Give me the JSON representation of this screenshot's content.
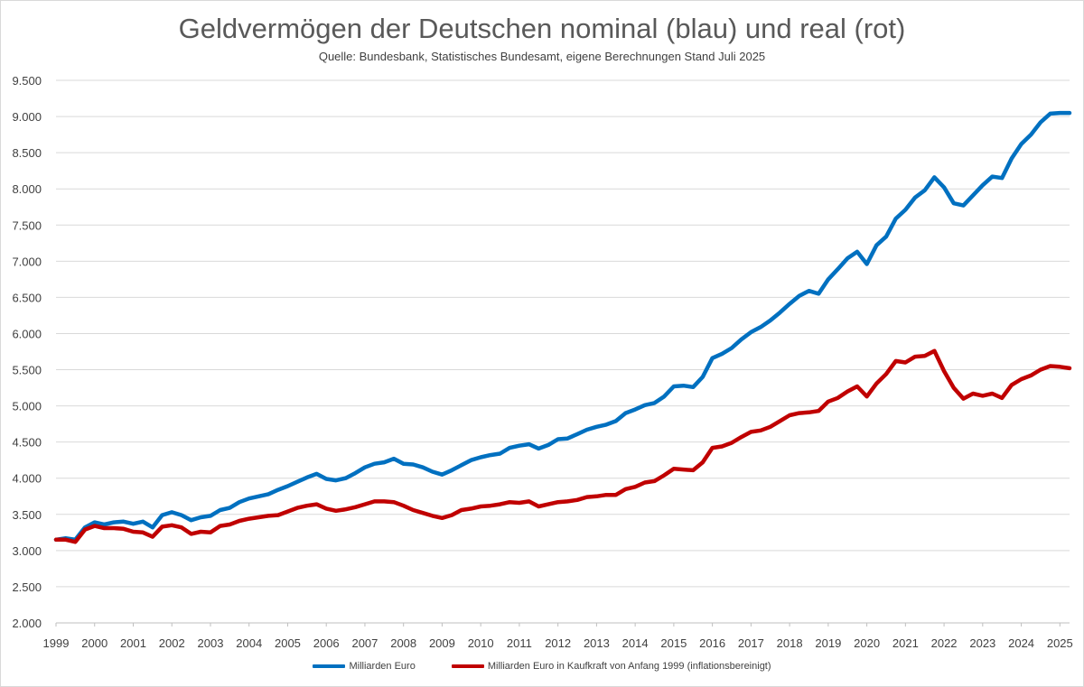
{
  "chart_data": {
    "type": "line",
    "title": "Geldvermögen der Deutschen nominal (blau) und real (rot)",
    "subtitle": "Quelle: Bundesbank, Statistisches Bundesamt, eigene Berechnungen Stand Juli 2025",
    "xlabel": "",
    "ylabel": "",
    "ylim": [
      2000,
      9500
    ],
    "xlim": [
      1999,
      2025.25
    ],
    "y_ticks": [
      2000,
      2500,
      3000,
      3500,
      4000,
      4500,
      5000,
      5500,
      6000,
      6500,
      7000,
      7500,
      8000,
      8500,
      9000,
      9500
    ],
    "y_tick_labels": [
      "2.000",
      "2.500",
      "3.000",
      "3.500",
      "4.000",
      "4.500",
      "5.000",
      "5.500",
      "6.000",
      "6.500",
      "7.000",
      "7.500",
      "8.000",
      "8.500",
      "9.000",
      "9.500"
    ],
    "x_tick_labels": [
      "1999",
      "2000",
      "2001",
      "2002",
      "2003",
      "2004",
      "2005",
      "2006",
      "2007",
      "2008",
      "2009",
      "2010",
      "2011",
      "2012",
      "2013",
      "2014",
      "2015",
      "2016",
      "2017",
      "2018",
      "2019",
      "2020",
      "2021",
      "2022",
      "2023",
      "2024",
      "2025"
    ],
    "grid": true,
    "legend_position": "bottom",
    "series": [
      {
        "name": "Milliarden Euro",
        "color": "#0070c0",
        "points": [
          [
            1999.0,
            3150
          ],
          [
            1999.25,
            3170
          ],
          [
            1999.5,
            3150
          ],
          [
            1999.75,
            3320
          ],
          [
            2000.0,
            3390
          ],
          [
            2000.25,
            3360
          ],
          [
            2000.5,
            3390
          ],
          [
            2000.75,
            3400
          ],
          [
            2001.0,
            3370
          ],
          [
            2001.25,
            3400
          ],
          [
            2001.5,
            3320
          ],
          [
            2001.75,
            3490
          ],
          [
            2002.0,
            3530
          ],
          [
            2002.25,
            3490
          ],
          [
            2002.5,
            3420
          ],
          [
            2002.75,
            3460
          ],
          [
            2003.0,
            3480
          ],
          [
            2003.25,
            3560
          ],
          [
            2003.5,
            3590
          ],
          [
            2003.75,
            3670
          ],
          [
            2004.0,
            3720
          ],
          [
            2004.25,
            3750
          ],
          [
            2004.5,
            3780
          ],
          [
            2004.75,
            3840
          ],
          [
            2005.0,
            3890
          ],
          [
            2005.25,
            3950
          ],
          [
            2005.5,
            4010
          ],
          [
            2005.75,
            4060
          ],
          [
            2006.0,
            3990
          ],
          [
            2006.25,
            3970
          ],
          [
            2006.5,
            4000
          ],
          [
            2006.75,
            4070
          ],
          [
            2007.0,
            4150
          ],
          [
            2007.25,
            4200
          ],
          [
            2007.5,
            4220
          ],
          [
            2007.75,
            4270
          ],
          [
            2008.0,
            4200
          ],
          [
            2008.25,
            4190
          ],
          [
            2008.5,
            4150
          ],
          [
            2008.75,
            4090
          ],
          [
            2009.0,
            4050
          ],
          [
            2009.25,
            4110
          ],
          [
            2009.5,
            4180
          ],
          [
            2009.75,
            4250
          ],
          [
            2010.0,
            4290
          ],
          [
            2010.25,
            4320
          ],
          [
            2010.5,
            4340
          ],
          [
            2010.75,
            4420
          ],
          [
            2011.0,
            4450
          ],
          [
            2011.25,
            4470
          ],
          [
            2011.5,
            4410
          ],
          [
            2011.75,
            4460
          ],
          [
            2012.0,
            4540
          ],
          [
            2012.25,
            4550
          ],
          [
            2012.5,
            4610
          ],
          [
            2012.75,
            4670
          ],
          [
            2013.0,
            4710
          ],
          [
            2013.25,
            4740
          ],
          [
            2013.5,
            4790
          ],
          [
            2013.75,
            4900
          ],
          [
            2014.0,
            4950
          ],
          [
            2014.25,
            5010
          ],
          [
            2014.5,
            5040
          ],
          [
            2014.75,
            5130
          ],
          [
            2015.0,
            5270
          ],
          [
            2015.25,
            5280
          ],
          [
            2015.5,
            5260
          ],
          [
            2015.75,
            5400
          ],
          [
            2016.0,
            5660
          ],
          [
            2016.25,
            5720
          ],
          [
            2016.5,
            5800
          ],
          [
            2016.75,
            5920
          ],
          [
            2017.0,
            6020
          ],
          [
            2017.25,
            6090
          ],
          [
            2017.5,
            6180
          ],
          [
            2017.75,
            6290
          ],
          [
            2018.0,
            6410
          ],
          [
            2018.25,
            6520
          ],
          [
            2018.5,
            6590
          ],
          [
            2018.75,
            6550
          ],
          [
            2019.0,
            6750
          ],
          [
            2019.25,
            6890
          ],
          [
            2019.5,
            7040
          ],
          [
            2019.75,
            7130
          ],
          [
            2020.0,
            6960
          ],
          [
            2020.25,
            7220
          ],
          [
            2020.5,
            7340
          ],
          [
            2020.75,
            7590
          ],
          [
            2021.0,
            7710
          ],
          [
            2021.25,
            7880
          ],
          [
            2021.5,
            7980
          ],
          [
            2021.75,
            8160
          ],
          [
            2022.0,
            8020
          ],
          [
            2022.25,
            7800
          ],
          [
            2022.5,
            7770
          ],
          [
            2022.75,
            7910
          ],
          [
            2023.0,
            8050
          ],
          [
            2023.25,
            8170
          ],
          [
            2023.5,
            8150
          ],
          [
            2023.75,
            8420
          ],
          [
            2024.0,
            8620
          ],
          [
            2024.25,
            8750
          ],
          [
            2024.5,
            8920
          ],
          [
            2024.75,
            9040
          ],
          [
            2025.0,
            9050
          ],
          [
            2025.25,
            9050
          ]
        ]
      },
      {
        "name": "Milliarden Euro in Kaufkraft von Anfang 1999 (inflationsbereinigt)",
        "color": "#c00000",
        "points": [
          [
            1999.0,
            3150
          ],
          [
            1999.25,
            3150
          ],
          [
            1999.5,
            3120
          ],
          [
            1999.75,
            3290
          ],
          [
            2000.0,
            3340
          ],
          [
            2000.25,
            3310
          ],
          [
            2000.5,
            3310
          ],
          [
            2000.75,
            3300
          ],
          [
            2001.0,
            3260
          ],
          [
            2001.25,
            3250
          ],
          [
            2001.5,
            3190
          ],
          [
            2001.75,
            3330
          ],
          [
            2002.0,
            3350
          ],
          [
            2002.25,
            3320
          ],
          [
            2002.5,
            3230
          ],
          [
            2002.75,
            3260
          ],
          [
            2003.0,
            3250
          ],
          [
            2003.25,
            3340
          ],
          [
            2003.5,
            3360
          ],
          [
            2003.75,
            3410
          ],
          [
            2004.0,
            3440
          ],
          [
            2004.25,
            3460
          ],
          [
            2004.5,
            3480
          ],
          [
            2004.75,
            3490
          ],
          [
            2005.0,
            3540
          ],
          [
            2005.25,
            3590
          ],
          [
            2005.5,
            3620
          ],
          [
            2005.75,
            3640
          ],
          [
            2006.0,
            3580
          ],
          [
            2006.25,
            3550
          ],
          [
            2006.5,
            3570
          ],
          [
            2006.75,
            3600
          ],
          [
            2007.0,
            3640
          ],
          [
            2007.25,
            3680
          ],
          [
            2007.5,
            3680
          ],
          [
            2007.75,
            3670
          ],
          [
            2008.0,
            3620
          ],
          [
            2008.25,
            3560
          ],
          [
            2008.5,
            3520
          ],
          [
            2008.75,
            3480
          ],
          [
            2009.0,
            3450
          ],
          [
            2009.25,
            3490
          ],
          [
            2009.5,
            3560
          ],
          [
            2009.75,
            3580
          ],
          [
            2010.0,
            3610
          ],
          [
            2010.25,
            3620
          ],
          [
            2010.5,
            3640
          ],
          [
            2010.75,
            3670
          ],
          [
            2011.0,
            3660
          ],
          [
            2011.25,
            3680
          ],
          [
            2011.5,
            3610
          ],
          [
            2011.75,
            3640
          ],
          [
            2012.0,
            3670
          ],
          [
            2012.25,
            3680
          ],
          [
            2012.5,
            3700
          ],
          [
            2012.75,
            3740
          ],
          [
            2013.0,
            3750
          ],
          [
            2013.25,
            3770
          ],
          [
            2013.5,
            3770
          ],
          [
            2013.75,
            3850
          ],
          [
            2014.0,
            3880
          ],
          [
            2014.25,
            3940
          ],
          [
            2014.5,
            3960
          ],
          [
            2014.75,
            4040
          ],
          [
            2015.0,
            4130
          ],
          [
            2015.25,
            4120
          ],
          [
            2015.5,
            4110
          ],
          [
            2015.75,
            4220
          ],
          [
            2016.0,
            4420
          ],
          [
            2016.25,
            4440
          ],
          [
            2016.5,
            4490
          ],
          [
            2016.75,
            4570
          ],
          [
            2017.0,
            4640
          ],
          [
            2017.25,
            4660
          ],
          [
            2017.5,
            4710
          ],
          [
            2017.75,
            4790
          ],
          [
            2018.0,
            4870
          ],
          [
            2018.25,
            4900
          ],
          [
            2018.5,
            4910
          ],
          [
            2018.75,
            4930
          ],
          [
            2019.0,
            5060
          ],
          [
            2019.25,
            5110
          ],
          [
            2019.5,
            5200
          ],
          [
            2019.75,
            5270
          ],
          [
            2020.0,
            5130
          ],
          [
            2020.25,
            5310
          ],
          [
            2020.5,
            5440
          ],
          [
            2020.75,
            5620
          ],
          [
            2021.0,
            5600
          ],
          [
            2021.25,
            5680
          ],
          [
            2021.5,
            5690
          ],
          [
            2021.75,
            5760
          ],
          [
            2022.0,
            5480
          ],
          [
            2022.25,
            5250
          ],
          [
            2022.5,
            5100
          ],
          [
            2022.75,
            5170
          ],
          [
            2023.0,
            5140
          ],
          [
            2023.25,
            5170
          ],
          [
            2023.5,
            5110
          ],
          [
            2023.75,
            5290
          ],
          [
            2024.0,
            5370
          ],
          [
            2024.25,
            5420
          ],
          [
            2024.5,
            5500
          ],
          [
            2024.75,
            5550
          ],
          [
            2025.0,
            5540
          ],
          [
            2025.25,
            5520
          ]
        ]
      }
    ]
  }
}
